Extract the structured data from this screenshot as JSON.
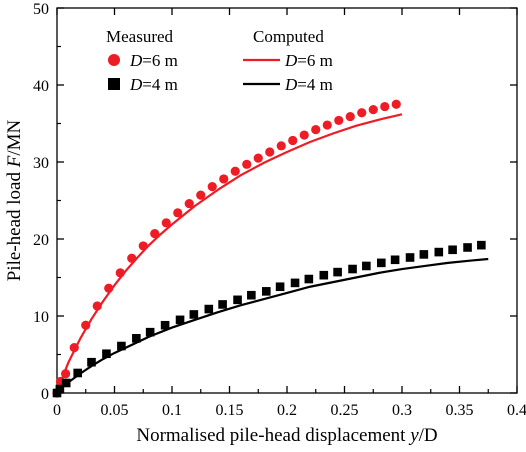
{
  "chart_data": {
    "type": "scatter",
    "xlabel": "Normalised pile-head displacement y/D",
    "xlabel_parts": {
      "prefix": "Normalised pile-head displacement ",
      "var": "y",
      "suffix": "/D"
    },
    "ylabel": "Pile-head load F/MN",
    "ylabel_parts": {
      "prefix": "Pile-head load ",
      "var": "F",
      "suffix": "/MN"
    },
    "xlim": [
      0,
      0.4
    ],
    "ylim": [
      0,
      50
    ],
    "x_ticks": [
      0,
      0.05,
      0.1,
      0.15,
      0.2,
      0.25,
      0.3,
      0.35,
      0.4
    ],
    "x_tick_labels": [
      "0",
      "0.05",
      "0.1",
      "0.15",
      "0.2",
      "0.25",
      "0.3",
      "0.35",
      "0.4"
    ],
    "y_ticks": [
      0,
      10,
      20,
      30,
      40,
      50
    ],
    "y_tick_labels": [
      "0",
      "10",
      "20",
      "30",
      "40",
      "50"
    ],
    "grid": false,
    "legend": {
      "placement": "top-left",
      "measured_header": "Measured",
      "computed_header": "Computed",
      "entries": [
        {
          "group": "Measured",
          "var": "D",
          "text": "=6 m",
          "marker": "circle",
          "color": "#ee1c25"
        },
        {
          "group": "Measured",
          "var": "D",
          "text": "=4 m",
          "marker": "square",
          "color": "#000000"
        },
        {
          "group": "Computed",
          "var": "D",
          "text": "=6 m",
          "marker": "line",
          "color": "#ee1c25"
        },
        {
          "group": "Computed",
          "var": "D",
          "text": "=4 m",
          "marker": "line",
          "color": "#000000"
        }
      ]
    },
    "series": [
      {
        "name": "Measured D=6 m",
        "kind": "scatter",
        "marker": "circle",
        "color": "#ee1c25",
        "x": [
          0.0,
          0.003,
          0.0075,
          0.015,
          0.025,
          0.035,
          0.045,
          0.055,
          0.065,
          0.075,
          0.085,
          0.095,
          0.105,
          0.115,
          0.125,
          0.135,
          0.145,
          0.155,
          0.165,
          0.175,
          0.185,
          0.195,
          0.205,
          0.215,
          0.225,
          0.235,
          0.245,
          0.255,
          0.265,
          0.275,
          0.285,
          0.295
        ],
        "y": [
          0.0,
          1.5,
          2.5,
          5.9,
          8.8,
          11.3,
          13.6,
          15.6,
          17.5,
          19.1,
          20.7,
          22.1,
          23.4,
          24.6,
          25.7,
          26.8,
          27.8,
          28.8,
          29.7,
          30.5,
          31.3,
          32.1,
          32.8,
          33.5,
          34.2,
          34.8,
          35.4,
          35.9,
          36.4,
          36.8,
          37.2,
          37.5
        ]
      },
      {
        "name": "Measured D=4 m",
        "kind": "scatter",
        "marker": "square",
        "color": "#000000",
        "x": [
          0.0,
          0.0025,
          0.008,
          0.018,
          0.03,
          0.043,
          0.056,
          0.069,
          0.081,
          0.094,
          0.107,
          0.119,
          0.132,
          0.144,
          0.157,
          0.169,
          0.182,
          0.194,
          0.207,
          0.219,
          0.232,
          0.244,
          0.257,
          0.269,
          0.282,
          0.294,
          0.307,
          0.319,
          0.332,
          0.344,
          0.357,
          0.369
        ],
        "y": [
          0.0,
          0.5,
          1.3,
          2.6,
          4.0,
          5.1,
          6.1,
          7.1,
          7.9,
          8.8,
          9.5,
          10.2,
          10.9,
          11.5,
          12.1,
          12.7,
          13.2,
          13.8,
          14.3,
          14.8,
          15.3,
          15.7,
          16.1,
          16.5,
          16.9,
          17.3,
          17.6,
          18.0,
          18.3,
          18.6,
          18.9,
          19.2
        ]
      },
      {
        "name": "Computed D=6 m",
        "kind": "line",
        "color": "#ee1c25",
        "x": [
          0.0,
          0.005,
          0.01,
          0.02,
          0.03,
          0.04,
          0.05,
          0.06,
          0.07,
          0.08,
          0.09,
          0.1,
          0.12,
          0.14,
          0.16,
          0.18,
          0.2,
          0.22,
          0.24,
          0.26,
          0.28,
          0.3
        ],
        "y": [
          0.0,
          2.1,
          4.0,
          7.0,
          9.6,
          11.9,
          14.0,
          15.9,
          17.6,
          19.2,
          20.6,
          21.9,
          24.3,
          26.4,
          28.3,
          29.9,
          31.3,
          32.6,
          33.7,
          34.7,
          35.5,
          36.2
        ]
      },
      {
        "name": "Computed D=4 m",
        "kind": "line",
        "color": "#000000",
        "x": [
          0.0,
          0.005,
          0.01,
          0.02,
          0.03,
          0.04,
          0.05,
          0.06,
          0.08,
          0.1,
          0.12,
          0.14,
          0.16,
          0.18,
          0.2,
          0.22,
          0.24,
          0.26,
          0.28,
          0.3,
          0.32,
          0.34,
          0.36,
          0.375
        ],
        "y": [
          0.0,
          0.8,
          1.4,
          2.5,
          3.5,
          4.4,
          5.2,
          5.9,
          7.3,
          8.5,
          9.5,
          10.5,
          11.4,
          12.2,
          13.0,
          13.8,
          14.4,
          15.0,
          15.6,
          16.1,
          16.5,
          16.9,
          17.2,
          17.4
        ]
      }
    ]
  }
}
